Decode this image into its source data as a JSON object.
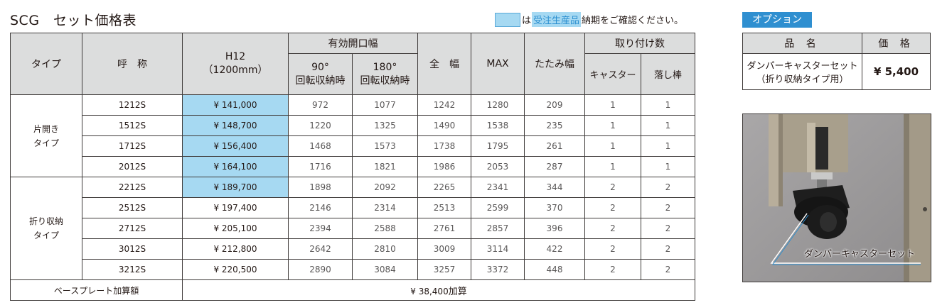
{
  "title": "SCG　セット価格表",
  "legend": {
    "pre": "は",
    "tag": "受注生産品",
    "post": "納期をご確認ください。"
  },
  "table": {
    "headers": {
      "type": "タイプ",
      "name": "呼　称",
      "h12_line1": "H12",
      "h12_line2": "（1200mm）",
      "effective_opening": "有効開口幅",
      "deg90_line1": "90°",
      "deg90_line2": "回転収納時",
      "deg180_line1": "180°",
      "deg180_line2": "回転収納時",
      "full_width": "全　幅",
      "max": "MAX",
      "folded_width": "たたみ幅",
      "mount_count": "取り付け数",
      "caster": "キャスター",
      "drop_rod": "落し棒"
    },
    "groups": [
      {
        "label_line1": "片開き",
        "label_line2": "タイプ"
      },
      {
        "label_line1": "折り収納",
        "label_line2": "タイプ"
      }
    ],
    "rows": [
      {
        "model": "1212S",
        "price": "¥ 141,000",
        "deg90": "972",
        "deg180": "1077",
        "full": "1242",
        "max": "1280",
        "folded": "209",
        "caster": "1",
        "rod": "1",
        "made_to_order": true
      },
      {
        "model": "1512S",
        "price": "¥ 148,700",
        "deg90": "1220",
        "deg180": "1325",
        "full": "1490",
        "max": "1538",
        "folded": "235",
        "caster": "1",
        "rod": "1",
        "made_to_order": true
      },
      {
        "model": "1712S",
        "price": "¥ 156,400",
        "deg90": "1468",
        "deg180": "1573",
        "full": "1738",
        "max": "1795",
        "folded": "261",
        "caster": "1",
        "rod": "1",
        "made_to_order": true
      },
      {
        "model": "2012S",
        "price": "¥ 164,100",
        "deg90": "1716",
        "deg180": "1821",
        "full": "1986",
        "max": "2053",
        "folded": "287",
        "caster": "1",
        "rod": "1",
        "made_to_order": true
      },
      {
        "model": "2212S",
        "price": "¥ 189,700",
        "deg90": "1898",
        "deg180": "2092",
        "full": "2265",
        "max": "2341",
        "folded": "344",
        "caster": "2",
        "rod": "2",
        "made_to_order": true
      },
      {
        "model": "2512S",
        "price": "¥ 197,400",
        "deg90": "2146",
        "deg180": "2314",
        "full": "2513",
        "max": "2599",
        "folded": "370",
        "caster": "2",
        "rod": "2",
        "made_to_order": false
      },
      {
        "model": "2712S",
        "price": "¥ 205,100",
        "deg90": "2394",
        "deg180": "2588",
        "full": "2761",
        "max": "2857",
        "folded": "396",
        "caster": "2",
        "rod": "2",
        "made_to_order": false
      },
      {
        "model": "3012S",
        "price": "¥ 212,800",
        "deg90": "2642",
        "deg180": "2810",
        "full": "3009",
        "max": "3114",
        "folded": "422",
        "caster": "2",
        "rod": "2",
        "made_to_order": false
      },
      {
        "model": "3212S",
        "price": "¥ 220,500",
        "deg90": "2890",
        "deg180": "3084",
        "full": "3257",
        "max": "3372",
        "folded": "448",
        "caster": "2",
        "rod": "2",
        "made_to_order": false
      }
    ],
    "footer": {
      "label": "ベースプレート加算額",
      "price": "¥ 38,400",
      "suffix": "加算"
    }
  },
  "option": {
    "badge": "オプション",
    "headers": {
      "name": "品 名",
      "price": "価 格"
    },
    "item_line1": "ダンパーキャスターセット",
    "item_line2": "（折り収納タイプ用）",
    "item_price": "¥  5,400",
    "photo_label": "ダンパーキャスターセット"
  },
  "colors": {
    "made_to_order_bg": "#a6d9f2",
    "header_bg": "#dcdddd",
    "badge_bg": "#2f8fd0"
  }
}
